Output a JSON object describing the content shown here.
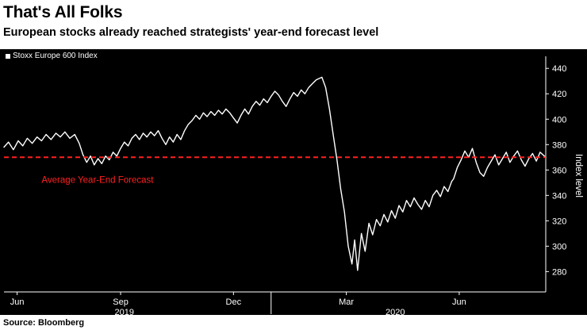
{
  "header": {
    "title": "That's All Folks",
    "subtitle": "European stocks already reached strategists' year-end forecast level"
  },
  "legend": {
    "label": "Stoxx Europe 600 Index"
  },
  "source": "Source: Bloomberg",
  "colors": {
    "page_bg": "#ffffff",
    "chart_bg": "#000000",
    "line": "#ffffff",
    "axis": "#ffffff",
    "forecast": "#ff2020",
    "heading_text": "#000000"
  },
  "chart_data": {
    "type": "line",
    "title": "That's All Folks",
    "subtitle": "European stocks already reached strategists' year-end forecast level",
    "ylabel": "Index level",
    "xlabel": "",
    "legend_position": "top-left",
    "grid": false,
    "ylim": [
      264,
      447
    ],
    "xlim": [
      0,
      14.4
    ],
    "y_ticks": [
      280,
      300,
      320,
      340,
      360,
      380,
      400,
      420,
      440
    ],
    "x_ticks": [
      {
        "x": 0.35,
        "label": "Jun"
      },
      {
        "x": 3.1,
        "label": "Sep"
      },
      {
        "x": 6.1,
        "label": "Dec"
      },
      {
        "x": 9.1,
        "label": "Mar"
      },
      {
        "x": 12.1,
        "label": "Jun"
      }
    ],
    "year_labels": [
      {
        "x": 3.2,
        "label": "2019"
      },
      {
        "x": 10.4,
        "label": "2020"
      }
    ],
    "year_divider_x": 7.1,
    "forecast": {
      "value": 370,
      "label": "Average Year-End Forecast",
      "label_x": 1.0,
      "label_y": 350
    },
    "series": [
      {
        "name": "Stoxx Europe 600 Index",
        "points": [
          [
            0.0,
            378
          ],
          [
            0.12,
            382
          ],
          [
            0.25,
            376
          ],
          [
            0.38,
            383
          ],
          [
            0.5,
            379
          ],
          [
            0.62,
            385
          ],
          [
            0.75,
            381
          ],
          [
            0.88,
            386
          ],
          [
            1.0,
            383
          ],
          [
            1.12,
            388
          ],
          [
            1.25,
            384
          ],
          [
            1.38,
            389
          ],
          [
            1.5,
            386
          ],
          [
            1.62,
            390
          ],
          [
            1.75,
            385
          ],
          [
            1.88,
            388
          ],
          [
            2.0,
            381
          ],
          [
            2.1,
            372
          ],
          [
            2.2,
            366
          ],
          [
            2.3,
            371
          ],
          [
            2.4,
            364
          ],
          [
            2.5,
            369
          ],
          [
            2.6,
            365
          ],
          [
            2.7,
            371
          ],
          [
            2.8,
            368
          ],
          [
            2.9,
            374
          ],
          [
            3.0,
            371
          ],
          [
            3.1,
            377
          ],
          [
            3.2,
            382
          ],
          [
            3.3,
            379
          ],
          [
            3.4,
            385
          ],
          [
            3.5,
            388
          ],
          [
            3.6,
            384
          ],
          [
            3.7,
            389
          ],
          [
            3.8,
            386
          ],
          [
            3.9,
            390
          ],
          [
            4.0,
            387
          ],
          [
            4.1,
            391
          ],
          [
            4.2,
            385
          ],
          [
            4.3,
            380
          ],
          [
            4.4,
            386
          ],
          [
            4.5,
            382
          ],
          [
            4.6,
            388
          ],
          [
            4.7,
            384
          ],
          [
            4.8,
            391
          ],
          [
            4.9,
            396
          ],
          [
            5.0,
            399
          ],
          [
            5.1,
            403
          ],
          [
            5.2,
            400
          ],
          [
            5.3,
            405
          ],
          [
            5.4,
            402
          ],
          [
            5.5,
            406
          ],
          [
            5.6,
            403
          ],
          [
            5.7,
            407
          ],
          [
            5.8,
            404
          ],
          [
            5.9,
            408
          ],
          [
            6.0,
            405
          ],
          [
            6.1,
            401
          ],
          [
            6.2,
            397
          ],
          [
            6.3,
            403
          ],
          [
            6.4,
            408
          ],
          [
            6.5,
            404
          ],
          [
            6.6,
            410
          ],
          [
            6.7,
            414
          ],
          [
            6.8,
            411
          ],
          [
            6.9,
            416
          ],
          [
            7.0,
            413
          ],
          [
            7.1,
            418
          ],
          [
            7.2,
            422
          ],
          [
            7.3,
            419
          ],
          [
            7.4,
            414
          ],
          [
            7.5,
            410
          ],
          [
            7.6,
            416
          ],
          [
            7.7,
            421
          ],
          [
            7.8,
            418
          ],
          [
            7.9,
            423
          ],
          [
            8.0,
            420
          ],
          [
            8.1,
            425
          ],
          [
            8.2,
            428
          ],
          [
            8.3,
            431
          ],
          [
            8.45,
            433
          ],
          [
            8.55,
            425
          ],
          [
            8.65,
            408
          ],
          [
            8.75,
            388
          ],
          [
            8.85,
            368
          ],
          [
            8.95,
            345
          ],
          [
            9.05,
            327
          ],
          [
            9.15,
            300
          ],
          [
            9.25,
            286
          ],
          [
            9.32,
            305
          ],
          [
            9.4,
            281
          ],
          [
            9.5,
            310
          ],
          [
            9.6,
            296
          ],
          [
            9.7,
            318
          ],
          [
            9.8,
            309
          ],
          [
            9.9,
            321
          ],
          [
            10.0,
            316
          ],
          [
            10.1,
            325
          ],
          [
            10.2,
            319
          ],
          [
            10.3,
            328
          ],
          [
            10.4,
            322
          ],
          [
            10.5,
            332
          ],
          [
            10.6,
            327
          ],
          [
            10.7,
            336
          ],
          [
            10.8,
            331
          ],
          [
            10.9,
            338
          ],
          [
            11.0,
            333
          ],
          [
            11.1,
            329
          ],
          [
            11.2,
            336
          ],
          [
            11.3,
            331
          ],
          [
            11.4,
            340
          ],
          [
            11.5,
            344
          ],
          [
            11.6,
            339
          ],
          [
            11.7,
            347
          ],
          [
            11.8,
            343
          ],
          [
            11.9,
            351
          ],
          [
            11.95,
            353
          ],
          [
            12.05,
            362
          ],
          [
            12.15,
            368
          ],
          [
            12.25,
            375
          ],
          [
            12.35,
            370
          ],
          [
            12.45,
            377
          ],
          [
            12.55,
            366
          ],
          [
            12.65,
            358
          ],
          [
            12.75,
            355
          ],
          [
            12.85,
            362
          ],
          [
            12.95,
            367
          ],
          [
            13.05,
            372
          ],
          [
            13.15,
            364
          ],
          [
            13.25,
            369
          ],
          [
            13.35,
            374
          ],
          [
            13.45,
            366
          ],
          [
            13.55,
            371
          ],
          [
            13.65,
            375
          ],
          [
            13.75,
            368
          ],
          [
            13.85,
            363
          ],
          [
            13.95,
            369
          ],
          [
            14.05,
            373
          ],
          [
            14.15,
            367
          ],
          [
            14.25,
            374
          ],
          [
            14.4,
            370
          ]
        ]
      }
    ]
  }
}
